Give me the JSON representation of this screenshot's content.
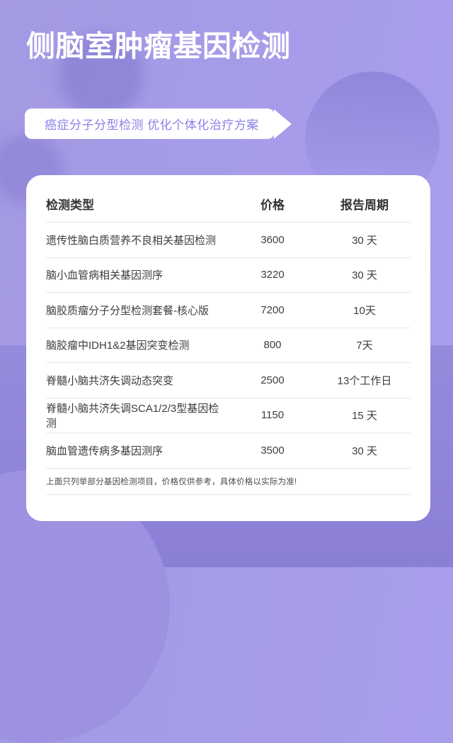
{
  "page": {
    "title": "侧脑室肿瘤基因检测",
    "banner_text": "癌症分子分型检测 优化个体化治疗方案"
  },
  "colors": {
    "background_light": "#a79ded",
    "background_dark": "#8b80d6",
    "accent_purple": "#8b80e8",
    "card_background": "#ffffff",
    "header_text": "#333333",
    "row_text": "#3d3d3d",
    "divider": "#e7e7e7"
  },
  "table": {
    "columns": [
      "检测类型",
      "价格",
      "报告周期"
    ],
    "rows": [
      {
        "name": "遗传性脑白质营养不良相关基因检测",
        "price": "3600",
        "period": "30 天"
      },
      {
        "name": "脑小血管病相关基因测序",
        "price": "3220",
        "period": "30 天"
      },
      {
        "name": "脑胶质瘤分子分型检测套餐-核心版",
        "price": "7200",
        "period": "10天"
      },
      {
        "name": "脑胶瘤中IDH1&2基因突变检测",
        "price": "800",
        "period": "7天"
      },
      {
        "name": "脊髓小脑共济失调动态突变",
        "price": "2500",
        "period": "13个工作日"
      },
      {
        "name": "脊髓小脑共济失调SCA1/2/3型基因检测",
        "price": "1150",
        "period": "15 天"
      },
      {
        "name": "脑血管遗传病多基因测序",
        "price": "3500",
        "period": "30 天"
      }
    ],
    "footnote": "上面只列举部分基因检测项目，价格仅供参考，具体价格以实际为准!"
  }
}
